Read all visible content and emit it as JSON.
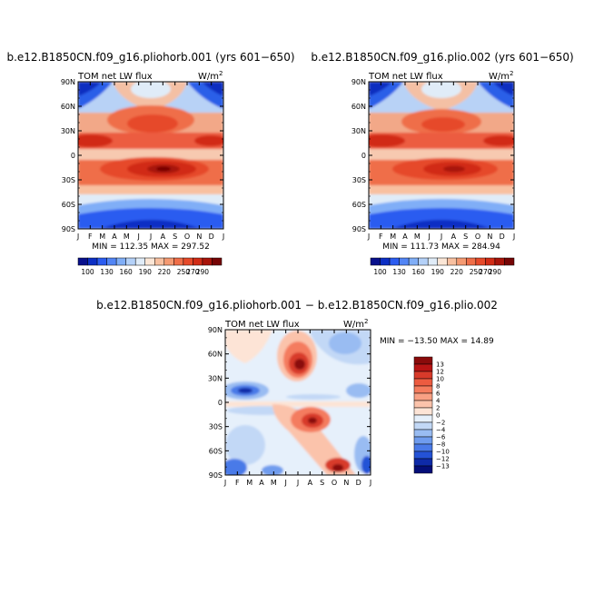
{
  "chart_data": [
    {
      "type": "heatmap",
      "title": "b.e12.B1850CN.f09_g16.pliohorb.001 (yrs 601−650)",
      "subtitle_left": "TOM net LW flux",
      "units_prefix": "W/m",
      "units_exp": "2",
      "x_ticks": [
        "J",
        "F",
        "M",
        "A",
        "M",
        "J",
        "J",
        "A",
        "S",
        "O",
        "N",
        "D",
        "J"
      ],
      "y_ticks": [
        "90N",
        "60N",
        "30N",
        "0",
        "30S",
        "60S",
        "90S"
      ],
      "stats": "MIN = 112.35   MAX = 297.52",
      "colorbar_labels": [
        "100",
        "130",
        "160",
        "190",
        "220",
        "250",
        "270",
        "290"
      ],
      "colors": [
        "#08108c",
        "#0c2fc4",
        "#2b5cf0",
        "#5285f5",
        "#80aef7",
        "#b4d1f8",
        "#e0ecf8",
        "#fbe6d6",
        "#f8c0a0",
        "#f49a72",
        "#ef6e48",
        "#e64a2a",
        "#d12c16",
        "#a8140a",
        "#760505"
      ]
    },
    {
      "type": "heatmap",
      "title": "b.e12.B1850CN.f09_g16.plio.002 (yrs 601−650)",
      "subtitle_left": "TOM net LW flux",
      "units_prefix": "W/m",
      "units_exp": "2",
      "x_ticks": [
        "J",
        "F",
        "M",
        "A",
        "M",
        "J",
        "J",
        "A",
        "S",
        "O",
        "N",
        "D",
        "J"
      ],
      "y_ticks": [
        "90N",
        "60N",
        "30N",
        "0",
        "30S",
        "60S",
        "90S"
      ],
      "stats": "MIN = 111.73   MAX = 284.94",
      "colorbar_labels": [
        "100",
        "130",
        "160",
        "190",
        "220",
        "250",
        "270",
        "290"
      ],
      "colors": [
        "#08108c",
        "#0c2fc4",
        "#2b5cf0",
        "#5285f5",
        "#80aef7",
        "#b4d1f8",
        "#e0ecf8",
        "#fbe6d6",
        "#f8c0a0",
        "#f49a72",
        "#ef6e48",
        "#e64a2a",
        "#d12c16",
        "#a8140a",
        "#760505"
      ]
    },
    {
      "type": "heatmap",
      "title": "b.e12.B1850CN.f09_g16.pliohorb.001  −  b.e12.B1850CN.f09_g16.plio.002",
      "subtitle_left": "TOM net LW flux",
      "units_prefix": "W/m",
      "units_exp": "2",
      "x_ticks": [
        "J",
        "F",
        "M",
        "A",
        "M",
        "J",
        "J",
        "A",
        "S",
        "O",
        "N",
        "D",
        "J"
      ],
      "y_ticks": [
        "90N",
        "60N",
        "30N",
        "0",
        "30S",
        "60S",
        "90S"
      ],
      "stats": "MIN = −13.50  MAX =  14.89",
      "colorbar_labels": [
        "13",
        "12",
        "10",
        "8",
        "6",
        "4",
        "2",
        "0",
        "−2",
        "−4",
        "−6",
        "−8",
        "−10",
        "−12",
        "−13"
      ],
      "colors": [
        "#8a0b0b",
        "#b81414",
        "#d83a2a",
        "#ec5b40",
        "#f47c5e",
        "#f8a084",
        "#fbc3ab",
        "#fde4d6",
        "#e6f0fb",
        "#c2d8f6",
        "#99bcf2",
        "#6f9cee",
        "#4a7ae8",
        "#2452d6",
        "#0e2aa8",
        "#040e78"
      ]
    }
  ]
}
